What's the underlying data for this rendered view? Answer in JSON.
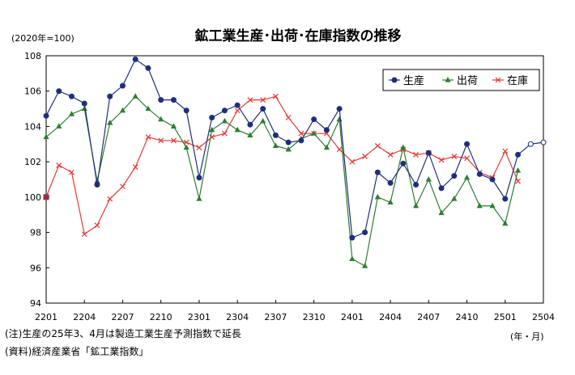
{
  "chart_data": {
    "type": "line",
    "title": "鉱工業生産･出荷･在庫指数の推移",
    "y_unit_label": "(2020年=100)",
    "x_unit_label": "(年・月)",
    "ylim": [
      94,
      108
    ],
    "yticks": [
      94,
      96,
      98,
      100,
      102,
      104,
      106,
      108
    ],
    "x_tick_labels": [
      "2201",
      "2204",
      "2207",
      "2210",
      "2301",
      "2304",
      "2307",
      "2310",
      "2401",
      "2404",
      "2407",
      "2410",
      "2501",
      "2504"
    ],
    "x_start": "2022-01",
    "x_end": "2025-04",
    "legend_position": "top-right",
    "grid": false,
    "series": [
      {
        "name": "生産",
        "color": "#1f2f7a",
        "marker": "circle",
        "values": [
          104.6,
          106.0,
          105.7,
          105.3,
          100.7,
          105.7,
          106.3,
          107.8,
          107.3,
          105.5,
          105.5,
          104.9,
          101.1,
          104.5,
          104.9,
          105.2,
          104.1,
          105.0,
          103.5,
          103.1,
          103.2,
          104.4,
          103.8,
          105.0,
          97.7,
          98.0,
          101.4,
          100.8,
          101.9,
          100.7,
          102.5,
          100.5,
          101.2,
          103.0,
          101.3,
          101.0,
          99.9,
          102.4
        ],
        "forecast": [
          103.0,
          103.1
        ]
      },
      {
        "name": "出荷",
        "color": "#2e7d32",
        "marker": "triangle",
        "values": [
          103.4,
          104.0,
          104.7,
          105.0,
          100.9,
          104.2,
          104.9,
          105.7,
          105.0,
          104.4,
          104.0,
          102.8,
          99.9,
          103.8,
          104.3,
          103.8,
          103.5,
          104.3,
          102.9,
          102.7,
          103.3,
          103.6,
          102.8,
          104.4,
          96.5,
          96.1,
          100.0,
          99.7,
          102.8,
          99.5,
          101.0,
          99.1,
          99.9,
          101.1,
          99.5,
          99.5,
          98.5,
          101.5
        ]
      },
      {
        "name": "在庫",
        "color": "#e53935",
        "marker": "x",
        "values": [
          100.0,
          101.8,
          101.4,
          97.9,
          98.4,
          99.9,
          100.6,
          101.7,
          103.4,
          103.2,
          103.2,
          103.1,
          102.8,
          103.4,
          103.6,
          104.9,
          105.5,
          105.5,
          105.7,
          104.5,
          103.6,
          103.6,
          103.6,
          102.7,
          102.0,
          102.3,
          102.9,
          102.4,
          102.7,
          102.4,
          102.5,
          102.1,
          102.3,
          102.2,
          101.4,
          101.1,
          102.6,
          100.9
        ]
      }
    ]
  },
  "notes": {
    "note1": "(注)生産の25年3、4月は製造工業生産予測指数で延長",
    "note2": "(資料)経済産業省「鉱工業指数」"
  }
}
